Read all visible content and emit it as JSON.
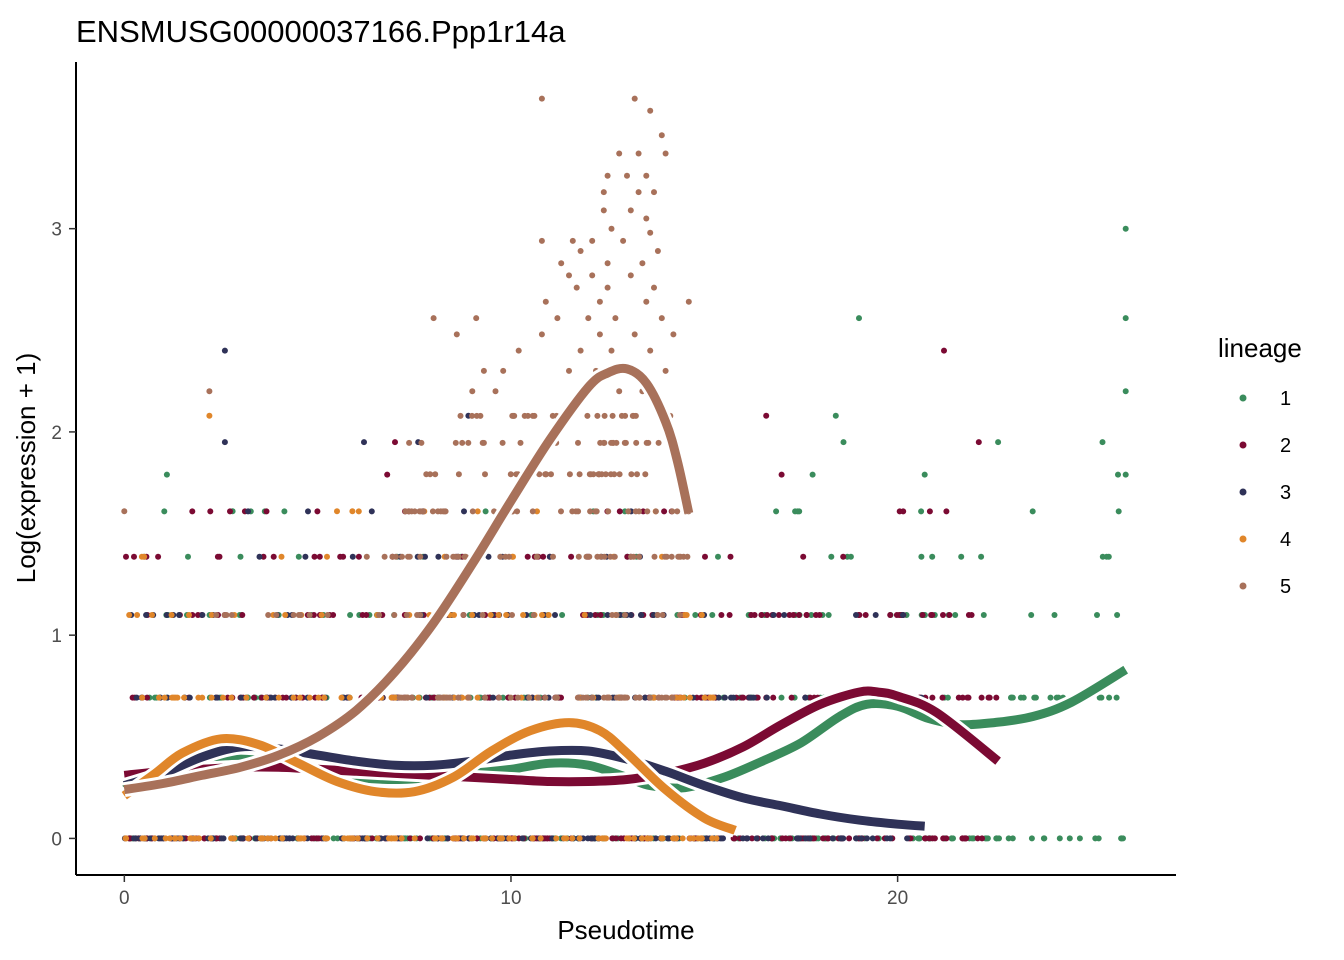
{
  "chart_data": {
    "type": "scatter",
    "title": "ENSMUSG00000037166.Ppp1r14a",
    "xlabel": "Pseudotime",
    "ylabel": "Log(expression + 1)",
    "xlim": [
      -1.25,
      27.2
    ],
    "ylim": [
      -0.18,
      3.82
    ],
    "x_ticks": [
      {
        "value": 0,
        "label": "0"
      },
      {
        "value": 10,
        "label": "10"
      },
      {
        "value": 20,
        "label": "20"
      }
    ],
    "y_ticks": [
      {
        "value": 0,
        "label": "0"
      },
      {
        "value": 1,
        "label": "1"
      },
      {
        "value": 2,
        "label": "2"
      },
      {
        "value": 3,
        "label": "3"
      }
    ],
    "grid": false,
    "legend": {
      "title": "lineage",
      "position": "right",
      "entries": [
        {
          "label": "1",
          "color": "#3a8c5c"
        },
        {
          "label": "2",
          "color": "#7b0a33"
        },
        {
          "label": "3",
          "color": "#2f3258"
        },
        {
          "label": "4",
          "color": "#e0862a"
        },
        {
          "label": "5",
          "color": "#a8715a"
        }
      ]
    },
    "expression_levels": [
      0,
      0.693,
      1.099,
      1.386,
      1.609,
      1.792,
      1.946,
      2.079
    ],
    "point_series": [
      {
        "lineage": "1",
        "bands": [
          {
            "y": 0,
            "x_min": 0,
            "x_max": 25.9,
            "count": 160
          },
          {
            "y": 0.693,
            "x_min": 0,
            "x_max": 25.9,
            "count": 90
          },
          {
            "y": 1.099,
            "x_min": 0,
            "x_max": 25.9,
            "count": 55
          },
          {
            "y": 1.386,
            "x_min": 0.4,
            "x_max": 25.9,
            "count": 20
          },
          {
            "y": 1.609,
            "x_min": 0.2,
            "x_max": 25.9,
            "count": 14
          }
        ],
        "points": [
          {
            "x": 1.1,
            "y": 1.79
          },
          {
            "x": 18.4,
            "y": 2.08
          },
          {
            "x": 18.6,
            "y": 1.95
          },
          {
            "x": 19.0,
            "y": 2.56
          },
          {
            "x": 20.7,
            "y": 1.79
          },
          {
            "x": 22.6,
            "y": 1.95
          },
          {
            "x": 25.3,
            "y": 1.95
          },
          {
            "x": 25.7,
            "y": 1.79
          },
          {
            "x": 25.9,
            "y": 2.2
          },
          {
            "x": 25.9,
            "y": 2.56
          },
          {
            "x": 25.9,
            "y": 3.0
          },
          {
            "x": 2.8,
            "y": 1.61
          },
          {
            "x": 17.8,
            "y": 1.79
          },
          {
            "x": 25.9,
            "y": 1.79
          }
        ]
      },
      {
        "lineage": "2",
        "bands": [
          {
            "y": 0,
            "x_min": 0,
            "x_max": 22.6,
            "count": 170
          },
          {
            "y": 0.693,
            "x_min": 0,
            "x_max": 22.6,
            "count": 120
          },
          {
            "y": 1.099,
            "x_min": 0,
            "x_max": 22.6,
            "count": 70
          },
          {
            "y": 1.386,
            "x_min": 0,
            "x_max": 22.0,
            "count": 30
          },
          {
            "y": 1.609,
            "x_min": 1.5,
            "x_max": 22.6,
            "count": 18
          }
        ],
        "points": [
          {
            "x": 21.2,
            "y": 2.4
          },
          {
            "x": 16.6,
            "y": 2.08
          },
          {
            "x": 22.1,
            "y": 1.95
          },
          {
            "x": 17.0,
            "y": 1.79
          },
          {
            "x": 7.0,
            "y": 1.95
          },
          {
            "x": 6.8,
            "y": 1.79
          }
        ]
      },
      {
        "lineage": "3",
        "bands": [
          {
            "y": 0,
            "x_min": 0,
            "x_max": 20.7,
            "count": 120
          },
          {
            "y": 0.693,
            "x_min": 0,
            "x_max": 20.7,
            "count": 70
          },
          {
            "y": 1.099,
            "x_min": 0,
            "x_max": 20.7,
            "count": 40
          },
          {
            "y": 1.386,
            "x_min": 0,
            "x_max": 14.6,
            "count": 14
          },
          {
            "y": 1.609,
            "x_min": 2.3,
            "x_max": 14.0,
            "count": 6
          }
        ],
        "points": [
          {
            "x": 2.6,
            "y": 2.4
          },
          {
            "x": 2.6,
            "y": 1.95
          },
          {
            "x": 6.2,
            "y": 1.95
          },
          {
            "x": 7.6,
            "y": 1.95
          },
          {
            "x": 8.9,
            "y": 2.08
          }
        ]
      },
      {
        "lineage": "4",
        "bands": [
          {
            "y": 0,
            "x_min": 0,
            "x_max": 15.8,
            "count": 100
          },
          {
            "y": 0.693,
            "x_min": 0,
            "x_max": 15.8,
            "count": 60
          },
          {
            "y": 1.099,
            "x_min": 0,
            "x_max": 15.8,
            "count": 30
          },
          {
            "y": 1.386,
            "x_min": 0.4,
            "x_max": 15.7,
            "count": 10
          },
          {
            "y": 1.609,
            "x_min": 5.5,
            "x_max": 14.0,
            "count": 5
          }
        ],
        "points": [
          {
            "x": 2.2,
            "y": 2.08
          },
          {
            "x": 5.5,
            "y": 1.61
          },
          {
            "x": 5.9,
            "y": 1.61
          }
        ]
      },
      {
        "lineage": "5",
        "bands": [
          {
            "y": 0.693,
            "x_min": 7.0,
            "x_max": 14.6,
            "count": 55
          },
          {
            "y": 1.099,
            "x_min": 2.2,
            "x_max": 14.6,
            "count": 30
          },
          {
            "y": 1.386,
            "x_min": 6.0,
            "x_max": 14.6,
            "count": 40
          },
          {
            "y": 1.609,
            "x_min": 6.8,
            "x_max": 14.6,
            "count": 40
          },
          {
            "y": 1.792,
            "x_min": 7.8,
            "x_max": 14.2,
            "count": 30
          },
          {
            "y": 1.946,
            "x_min": 7.2,
            "x_max": 14.2,
            "count": 25
          },
          {
            "y": 2.079,
            "x_min": 8.6,
            "x_max": 14.2,
            "count": 25
          }
        ],
        "points": [
          {
            "x": 0,
            "y": 1.61
          },
          {
            "x": 2.2,
            "y": 2.2
          },
          {
            "x": 10.8,
            "y": 3.64
          },
          {
            "x": 13.2,
            "y": 3.64
          },
          {
            "x": 13.6,
            "y": 3.58
          },
          {
            "x": 13.9,
            "y": 3.46
          },
          {
            "x": 12.8,
            "y": 3.37
          },
          {
            "x": 13.3,
            "y": 3.37
          },
          {
            "x": 14.0,
            "y": 3.37
          },
          {
            "x": 12.5,
            "y": 3.26
          },
          {
            "x": 13.0,
            "y": 3.26
          },
          {
            "x": 13.5,
            "y": 3.26
          },
          {
            "x": 12.4,
            "y": 3.18
          },
          {
            "x": 13.3,
            "y": 3.18
          },
          {
            "x": 13.7,
            "y": 3.18
          },
          {
            "x": 12.4,
            "y": 3.09
          },
          {
            "x": 13.1,
            "y": 3.09
          },
          {
            "x": 13.5,
            "y": 3.05
          },
          {
            "x": 12.6,
            "y": 3.0
          },
          {
            "x": 13.6,
            "y": 2.98
          },
          {
            "x": 11.6,
            "y": 2.94
          },
          {
            "x": 10.8,
            "y": 2.94
          },
          {
            "x": 12.1,
            "y": 2.94
          },
          {
            "x": 12.9,
            "y": 2.94
          },
          {
            "x": 13.8,
            "y": 2.89
          },
          {
            "x": 11.8,
            "y": 2.89
          },
          {
            "x": 12.5,
            "y": 2.83
          },
          {
            "x": 11.3,
            "y": 2.83
          },
          {
            "x": 13.4,
            "y": 2.83
          },
          {
            "x": 11.5,
            "y": 2.77
          },
          {
            "x": 12.1,
            "y": 2.77
          },
          {
            "x": 13.1,
            "y": 2.77
          },
          {
            "x": 11.7,
            "y": 2.71
          },
          {
            "x": 12.5,
            "y": 2.71
          },
          {
            "x": 13.7,
            "y": 2.71
          },
          {
            "x": 14.6,
            "y": 2.64
          },
          {
            "x": 10.9,
            "y": 2.64
          },
          {
            "x": 12.3,
            "y": 2.64
          },
          {
            "x": 13.5,
            "y": 2.64
          },
          {
            "x": 8.0,
            "y": 2.56
          },
          {
            "x": 9.1,
            "y": 2.56
          },
          {
            "x": 11.2,
            "y": 2.56
          },
          {
            "x": 12.0,
            "y": 2.56
          },
          {
            "x": 12.7,
            "y": 2.56
          },
          {
            "x": 13.9,
            "y": 2.56
          },
          {
            "x": 8.6,
            "y": 2.48
          },
          {
            "x": 10.8,
            "y": 2.48
          },
          {
            "x": 12.3,
            "y": 2.48
          },
          {
            "x": 13.2,
            "y": 2.48
          },
          {
            "x": 14.2,
            "y": 2.48
          },
          {
            "x": 10.2,
            "y": 2.4
          },
          {
            "x": 11.8,
            "y": 2.4
          },
          {
            "x": 12.6,
            "y": 2.4
          },
          {
            "x": 13.6,
            "y": 2.4
          },
          {
            "x": 9.8,
            "y": 2.3
          },
          {
            "x": 9.3,
            "y": 2.3
          },
          {
            "x": 11.5,
            "y": 2.3
          },
          {
            "x": 12.2,
            "y": 2.3
          },
          {
            "x": 14.0,
            "y": 2.3
          },
          {
            "x": 9.0,
            "y": 2.2
          },
          {
            "x": 9.6,
            "y": 2.2
          },
          {
            "x": 11.9,
            "y": 2.2
          },
          {
            "x": 12.8,
            "y": 2.2
          },
          {
            "x": 13.4,
            "y": 2.2
          }
        ]
      }
    ],
    "series": [
      {
        "name": "1",
        "x": [
          0,
          1,
          2,
          3,
          4,
          5,
          6,
          7,
          8,
          9,
          10,
          11,
          12,
          13,
          13.6,
          14.5,
          15.5,
          16.5,
          17.5,
          18.5,
          19.2,
          20,
          20.8,
          21.6,
          22.5,
          23.5,
          24.5,
          25.9
        ],
        "y": [
          0.24,
          0.33,
          0.37,
          0.39,
          0.37,
          0.33,
          0.3,
          0.29,
          0.3,
          0.32,
          0.34,
          0.37,
          0.36,
          0.3,
          0.26,
          0.25,
          0.3,
          0.38,
          0.47,
          0.6,
          0.66,
          0.65,
          0.59,
          0.56,
          0.57,
          0.6,
          0.67,
          0.83
        ]
      },
      {
        "name": "2",
        "x": [
          0,
          1,
          2,
          3,
          4,
          5,
          6,
          7,
          8,
          9,
          10,
          11,
          12,
          13,
          14,
          15,
          16,
          17,
          18,
          19,
          19.5,
          20,
          21,
          22.6
        ],
        "y": [
          0.31,
          0.33,
          0.34,
          0.35,
          0.35,
          0.34,
          0.33,
          0.32,
          0.31,
          0.3,
          0.29,
          0.28,
          0.28,
          0.29,
          0.32,
          0.37,
          0.45,
          0.56,
          0.66,
          0.72,
          0.72,
          0.7,
          0.62,
          0.38
        ]
      },
      {
        "name": "3",
        "x": [
          0,
          1,
          2,
          3,
          4,
          5,
          6,
          7,
          8,
          9,
          10,
          11,
          12,
          13,
          14,
          15,
          16,
          17,
          18,
          19,
          20,
          20.7
        ],
        "y": [
          0.26,
          0.32,
          0.4,
          0.45,
          0.44,
          0.41,
          0.38,
          0.36,
          0.36,
          0.38,
          0.41,
          0.43,
          0.43,
          0.39,
          0.33,
          0.26,
          0.2,
          0.16,
          0.12,
          0.09,
          0.07,
          0.06
        ]
      },
      {
        "name": "4",
        "x": [
          0,
          0.8,
          1.5,
          2.5,
          3.5,
          4.5,
          5.5,
          6.5,
          7.5,
          8.5,
          9.5,
          10.5,
          11.5,
          12.3,
          13,
          14,
          15,
          15.8
        ],
        "y": [
          0.21,
          0.32,
          0.42,
          0.49,
          0.46,
          0.37,
          0.28,
          0.23,
          0.23,
          0.3,
          0.43,
          0.53,
          0.57,
          0.53,
          0.42,
          0.24,
          0.1,
          0.04
        ]
      },
      {
        "name": "5",
        "x": [
          0,
          1,
          2,
          3,
          4,
          5,
          6,
          7,
          8,
          9,
          10,
          11,
          12,
          12.5,
          13,
          13.5,
          14,
          14.3,
          14.6
        ],
        "y": [
          0.24,
          0.27,
          0.31,
          0.35,
          0.41,
          0.5,
          0.63,
          0.82,
          1.06,
          1.35,
          1.66,
          1.96,
          2.22,
          2.29,
          2.31,
          2.24,
          2.05,
          1.86,
          1.6
        ]
      }
    ]
  }
}
